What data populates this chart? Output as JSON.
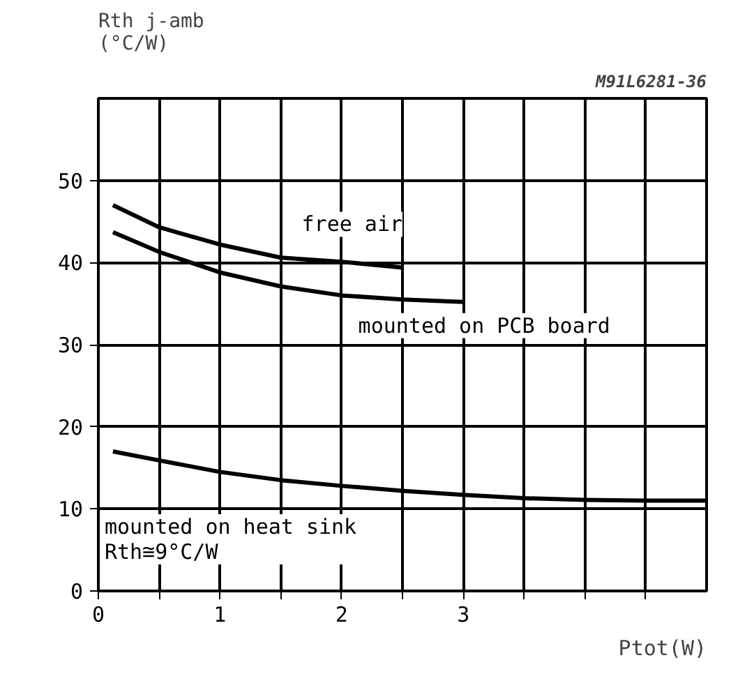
{
  "chart_data": {
    "type": "line",
    "ylabel": "Rth j-amb\n(°C/W)",
    "xlabel": "Ptot(W)",
    "title": "M91L6281-36",
    "x": [
      0.12,
      0.5,
      1,
      1.5,
      2,
      2.5,
      3,
      3.5,
      4,
      4.5,
      5
    ],
    "series": [
      {
        "name": "free air",
        "color": "#000000",
        "values": [
          47.0,
          44.3,
          42.2,
          40.6,
          40.1,
          39.4,
          null,
          null,
          null,
          null,
          null
        ]
      },
      {
        "name": "mounted on PCB board",
        "color": "#000000",
        "values": [
          43.7,
          41.3,
          38.8,
          37.1,
          36.0,
          35.5,
          35.2,
          null,
          null,
          null,
          null
        ]
      },
      {
        "name": "mounted on heat sink\nRth≅9°C/W",
        "color": "#000000",
        "values": [
          17.0,
          15.9,
          14.5,
          13.5,
          12.8,
          12.2,
          11.7,
          11.3,
          11.1,
          11.0,
          11.0
        ]
      }
    ],
    "xlim": [
      0,
      5
    ],
    "ylim": [
      0,
      60
    ],
    "xticks": [
      0,
      {
        "value": 0.5,
        "label": null
      },
      1,
      {
        "value": 1.5,
        "label": null
      },
      2,
      {
        "value": 2.5,
        "label": null
      },
      3,
      {
        "value": 3.5,
        "label": null
      },
      {
        "value": 4,
        "label": null
      },
      {
        "value": 4.5,
        "label": null
      }
    ],
    "yticks": [
      0,
      10,
      20,
      30,
      40,
      50
    ],
    "grid": true,
    "marker": "none",
    "line_style": "solid"
  }
}
